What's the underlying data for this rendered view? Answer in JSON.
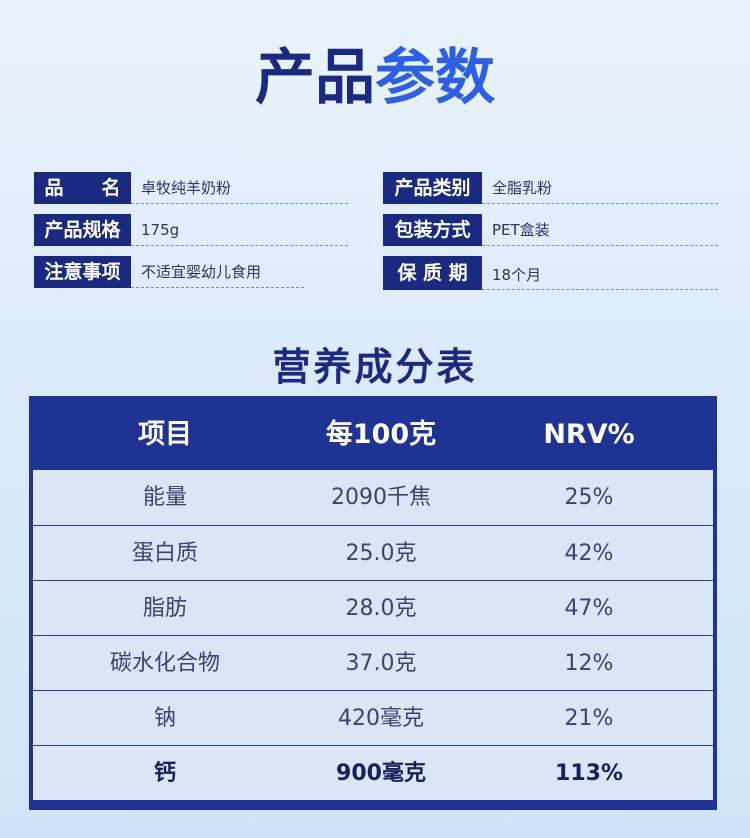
{
  "title": {
    "part1": "产品",
    "part2": "参数"
  },
  "specs": [
    {
      "label": "品　　名",
      "value": "卓牧纯羊奶粉"
    },
    {
      "label": "产品类别",
      "value": "全脂乳粉"
    },
    {
      "label": "产品规格",
      "value": "175g"
    },
    {
      "label": "包装方式",
      "value": "PET盒装"
    },
    {
      "label": "注意事项",
      "value": "不适宜婴幼儿食用"
    },
    {
      "label": "保 质 期",
      "value": "18个月"
    }
  ],
  "nutrition": {
    "title": "营养成分表",
    "headers": [
      "项目",
      "每100克",
      "NRV%"
    ],
    "rows": [
      [
        "能量",
        "2090千焦",
        "25%"
      ],
      [
        "蛋白质",
        "25.0克",
        "42%"
      ],
      [
        "脂肪",
        "28.0克",
        "47%"
      ],
      [
        "碳水化合物",
        "37.0克",
        "12%"
      ],
      [
        "钠",
        "420毫克",
        "21%"
      ],
      [
        "钙",
        "900毫克",
        "113%"
      ]
    ]
  },
  "colors": {
    "navy": "#1a2a80",
    "accent": "#2c5fe4",
    "table_bg": "#d8e6f6"
  }
}
